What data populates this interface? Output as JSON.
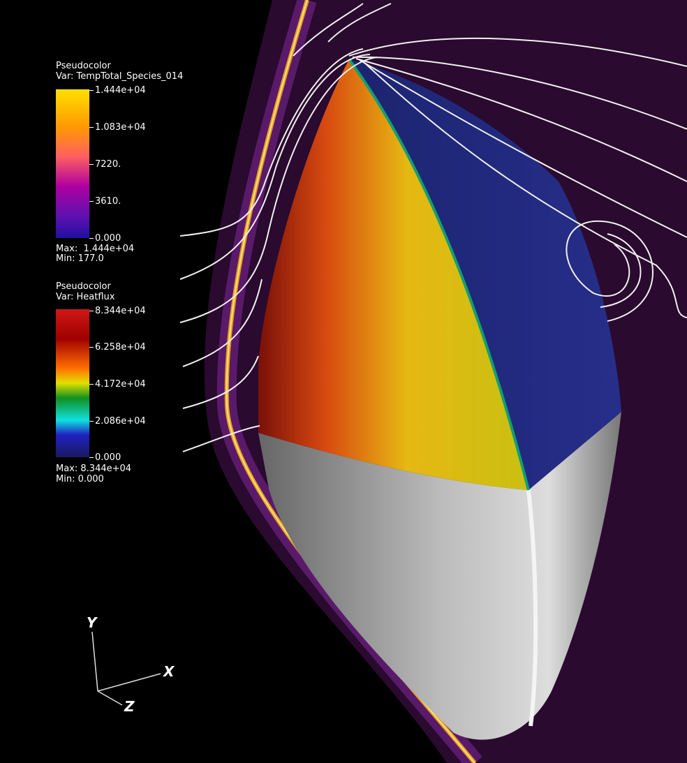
{
  "legends": [
    {
      "title": "Pseudocolor",
      "variable": "Var: TempTotal_Species_014",
      "ticks": [
        "1.444e+04",
        "1.083e+04",
        "7220.",
        "3610.",
        "0.000"
      ],
      "max": "Max:  1.444e+04",
      "min": "Min: 177.0"
    },
    {
      "title": "Pseudocolor",
      "variable": "Var: Heatflux",
      "ticks": [
        "8.344e+04",
        "6.258e+04",
        "4.172e+04",
        "2.086e+04",
        "0.000"
      ],
      "max": "Max: 8.344e+04",
      "min": "Min: 0.000"
    }
  ],
  "axes": {
    "x": "X",
    "y": "Y",
    "z": "Z"
  }
}
